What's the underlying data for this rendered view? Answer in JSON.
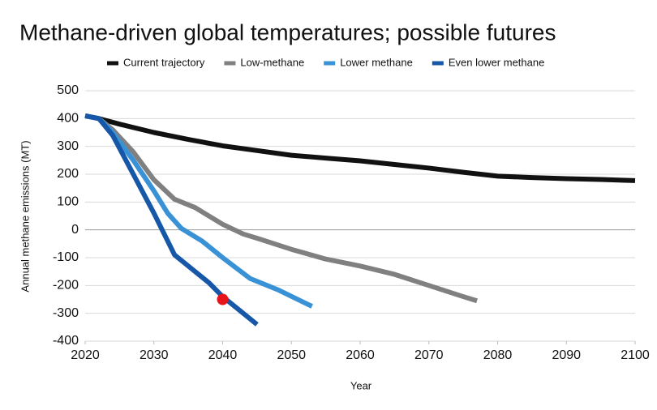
{
  "chart_data": {
    "type": "line",
    "title": "Methane-driven global temperatures; possible futures",
    "x_label": "Year",
    "y_label": "Annual methane emissions (MT)",
    "series": [
      {
        "name": "Current trajectory",
        "color": "#111111",
        "x": [
          2020,
          2022,
          2025,
          2030,
          2035,
          2040,
          2045,
          2050,
          2055,
          2060,
          2065,
          2070,
          2075,
          2080,
          2085,
          2090,
          2095,
          2100
        ],
        "values": [
          410,
          400,
          380,
          350,
          325,
          302,
          285,
          268,
          258,
          248,
          235,
          222,
          207,
          193,
          188,
          184,
          181,
          177
        ]
      },
      {
        "name": "Low-methane",
        "color": "#808080",
        "x": [
          2020,
          2022,
          2024,
          2027,
          2030,
          2033,
          2036,
          2040,
          2043,
          2045,
          2050,
          2055,
          2060,
          2065,
          2070,
          2075,
          2077
        ],
        "values": [
          410,
          400,
          360,
          280,
          180,
          110,
          80,
          20,
          -15,
          -30,
          -70,
          -105,
          -130,
          -160,
          -200,
          -240,
          -255
        ]
      },
      {
        "name": "Lower methane",
        "color": "#3a92d6",
        "x": [
          2020,
          2022,
          2024,
          2027,
          2030,
          2032,
          2034,
          2037,
          2040,
          2044,
          2048,
          2053
        ],
        "values": [
          410,
          400,
          350,
          250,
          140,
          60,
          5,
          -40,
          -100,
          -175,
          -215,
          -275
        ]
      },
      {
        "name": "Even lower methane",
        "color": "#1657a8",
        "x": [
          2020,
          2022,
          2024,
          2027,
          2030,
          2033,
          2035,
          2038,
          2040,
          2043,
          2045
        ],
        "values": [
          410,
          400,
          340,
          200,
          60,
          -90,
          -130,
          -190,
          -240,
          -300,
          -340
        ]
      }
    ],
    "marker": {
      "x": 2040,
      "y": -250,
      "color": "#e8141b"
    },
    "xlim": [
      2020,
      2100
    ],
    "xticks": [
      2020,
      2030,
      2040,
      2050,
      2060,
      2070,
      2080,
      2090,
      2100
    ],
    "ylim": [
      -400,
      500
    ],
    "yticks": [
      -400,
      -300,
      -200,
      -100,
      0,
      100,
      200,
      300,
      400,
      500
    ],
    "grid": true,
    "legend": "top"
  }
}
